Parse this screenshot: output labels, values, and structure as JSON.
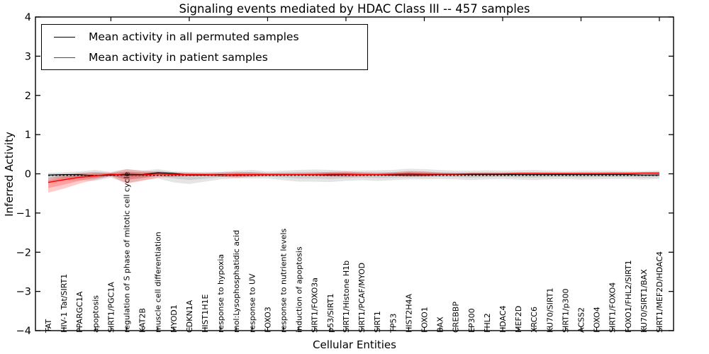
{
  "title": "Signaling events mediated by HDAC Class III -- 457 samples",
  "axes": {
    "ylabel": "Inferred Activity",
    "xlabel": "Cellular Entities",
    "yticks": [
      {
        "label": "4",
        "value": 4
      },
      {
        "label": "3",
        "value": 3
      },
      {
        "label": "2",
        "value": 2
      },
      {
        "label": "1",
        "value": 1
      },
      {
        "label": "0",
        "value": 0
      },
      {
        "label": "−1",
        "value": -1
      },
      {
        "label": "−2",
        "value": -2
      },
      {
        "label": "−3",
        "value": -3
      },
      {
        "label": "−4",
        "value": -4
      }
    ]
  },
  "legend": {
    "items": [
      {
        "label": "Mean activity in all permuted samples",
        "color": "#000000"
      },
      {
        "label": "Mean activity in patient samples",
        "color": "#ff0000"
      }
    ]
  },
  "colors": {
    "permuted_line": "#000000",
    "patient_line": "#ff0000",
    "permuted_band": "rgba(0,0,0,0.10)",
    "patient_band": "rgba(255,0,0,0.20)",
    "frame": "#000000"
  },
  "chart_data": {
    "type": "line",
    "title": "Signaling events mediated by HDAC Class III -- 457 samples",
    "xlabel": "Cellular Entities",
    "ylabel": "Inferred Activity",
    "ylim": [
      -4,
      4
    ],
    "grid": false,
    "legend_position": "upper left",
    "categories": [
      "TAT",
      "HIV-1 Tat/SIRT1",
      "PPARGC1A",
      "apoptosis",
      "SIRT1/PGC1A",
      "regulation of S phase of mitotic cell cycle",
      "KAT2B",
      "muscle cell differentiation",
      "MYOD1",
      "CDKN1A",
      "HIST1H1E",
      "response to hypoxia",
      "mol:Lysophosphatidic acid",
      "response to UV",
      "FOXO3",
      "response to nutrient levels",
      "induction of apoptosis",
      "SIRT1/FOXO3a",
      "p53/SIRT1",
      "SIRT1/Histone H1b",
      "SIRT1/PCAF/MYOD",
      "SIRT1",
      "TP53",
      "HIST2H4A",
      "FOXO1",
      "BAX",
      "CREBBP",
      "EP300",
      "FHL2",
      "HDAC4",
      "MEF2D",
      "XRCC6",
      "KU70/SIRT1",
      "SIRT1/p300",
      "ACSS2",
      "FOXO4",
      "SIRT1/FOXO4",
      "FOXO1/FHL2/SIRT1",
      "KU70/SIRT1/BAX",
      "SIRT1/MEF2D/HDAC4"
    ],
    "series": [
      {
        "name": "Mean activity in all permuted samples",
        "color": "#000000",
        "style": "solid-with-dashed-overlay",
        "values": [
          -0.03,
          -0.02,
          -0.02,
          -0.05,
          -0.03,
          -0.01,
          -0.02,
          0.03,
          0.01,
          -0.03,
          -0.03,
          -0.02,
          -0.03,
          -0.02,
          -0.02,
          -0.02,
          -0.02,
          -0.02,
          -0.03,
          -0.02,
          -0.02,
          -0.02,
          -0.03,
          -0.03,
          -0.03,
          -0.02,
          -0.02,
          -0.02,
          -0.02,
          -0.02,
          -0.02,
          -0.02,
          -0.02,
          -0.02,
          -0.02,
          -0.02,
          -0.02,
          -0.02,
          -0.03,
          -0.03
        ],
        "band_lo": [
          -0.21,
          -0.18,
          -0.16,
          -0.18,
          -0.1,
          -0.24,
          -0.16,
          -0.12,
          -0.22,
          -0.26,
          -0.2,
          -0.14,
          -0.12,
          -0.12,
          -0.12,
          -0.16,
          -0.2,
          -0.2,
          -0.21,
          -0.18,
          -0.16,
          -0.18,
          -0.16,
          -0.14,
          -0.14,
          -0.13,
          -0.14,
          -0.16,
          -0.14,
          -0.13,
          -0.15,
          -0.16,
          -0.14,
          -0.13,
          -0.15,
          -0.14,
          -0.13,
          -0.13,
          -0.15,
          -0.13
        ],
        "band_hi": [
          0.03,
          0.04,
          0.06,
          0.1,
          0.05,
          0.12,
          0.08,
          0.12,
          0.06,
          0.05,
          0.05,
          0.05,
          0.08,
          0.1,
          0.06,
          0.08,
          0.1,
          0.11,
          0.1,
          0.08,
          0.08,
          0.09,
          0.1,
          0.13,
          0.12,
          0.1,
          0.08,
          0.08,
          0.09,
          0.08,
          0.09,
          0.1,
          0.08,
          0.07,
          0.08,
          0.08,
          0.08,
          0.07,
          0.07,
          0.08
        ]
      },
      {
        "name": "Mean activity in patient samples",
        "color": "#ff0000",
        "style": "solid",
        "values": [
          -0.22,
          -0.15,
          -0.09,
          -0.05,
          -0.01,
          -0.04,
          -0.03,
          0.0,
          -0.02,
          -0.02,
          -0.02,
          -0.03,
          -0.02,
          -0.02,
          -0.02,
          -0.02,
          -0.02,
          -0.02,
          -0.01,
          -0.01,
          -0.02,
          -0.02,
          -0.01,
          0.0,
          -0.01,
          -0.01,
          -0.01,
          0.0,
          0.0,
          0.0,
          0.01,
          0.01,
          0.01,
          0.01,
          0.01,
          0.01,
          0.01,
          0.01,
          0.02,
          0.02
        ],
        "band_lo": [
          -0.48,
          -0.38,
          -0.25,
          -0.15,
          -0.06,
          -0.25,
          -0.18,
          -0.1,
          -0.08,
          -0.06,
          -0.05,
          -0.08,
          -0.1,
          -0.08,
          -0.05,
          -0.04,
          -0.04,
          -0.05,
          -0.07,
          -0.08,
          -0.06,
          -0.04,
          -0.05,
          -0.08,
          -0.07,
          -0.04,
          -0.03,
          -0.03,
          -0.02,
          -0.02,
          -0.02,
          -0.02,
          -0.02,
          -0.02,
          -0.01,
          -0.01,
          -0.01,
          -0.01,
          0.0,
          -0.02
        ],
        "band_hi": [
          -0.12,
          -0.02,
          0.02,
          0.05,
          0.03,
          0.12,
          0.08,
          0.05,
          0.04,
          0.03,
          0.02,
          0.04,
          0.05,
          0.04,
          0.02,
          0.02,
          0.02,
          0.03,
          0.05,
          0.06,
          0.04,
          0.02,
          0.04,
          0.07,
          0.06,
          0.03,
          0.02,
          0.02,
          0.02,
          0.02,
          0.03,
          0.03,
          0.03,
          0.03,
          0.03,
          0.03,
          0.04,
          0.04,
          0.04,
          0.05
        ]
      }
    ],
    "zero_reference": {
      "value": -0.04,
      "style": "dashed",
      "color": "#000000"
    }
  }
}
